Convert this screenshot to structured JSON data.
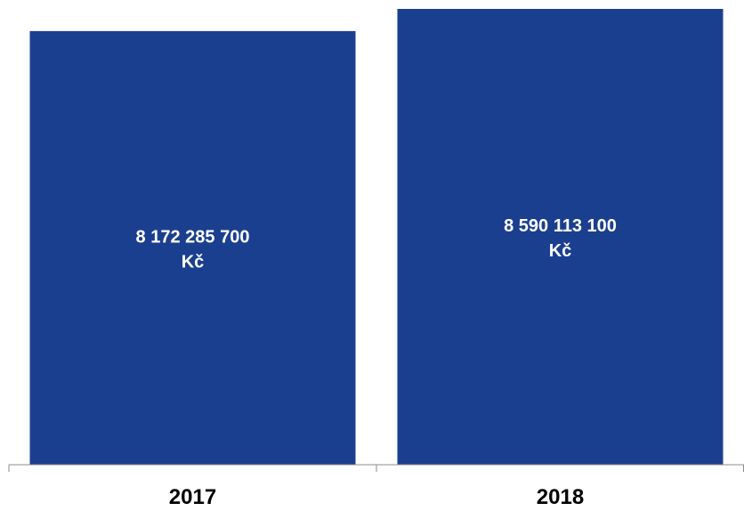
{
  "chart_data": {
    "type": "bar",
    "title": "",
    "xlabel": "",
    "ylabel": "",
    "categories": [
      "2017",
      "2018"
    ],
    "values": [
      8172285700,
      8590113100
    ],
    "data_labels": [
      {
        "value": "8 172 285 700",
        "unit": "Kč"
      },
      {
        "value": "8 590 113 100",
        "unit": "Kč"
      }
    ],
    "ylim": [
      0,
      8590113100
    ],
    "grid": false,
    "legend": "none",
    "bar_color": "#1b3f8f",
    "axis_color": "#8c8c8c",
    "label_color": "#ffffff",
    "tick_color": "#000000"
  }
}
